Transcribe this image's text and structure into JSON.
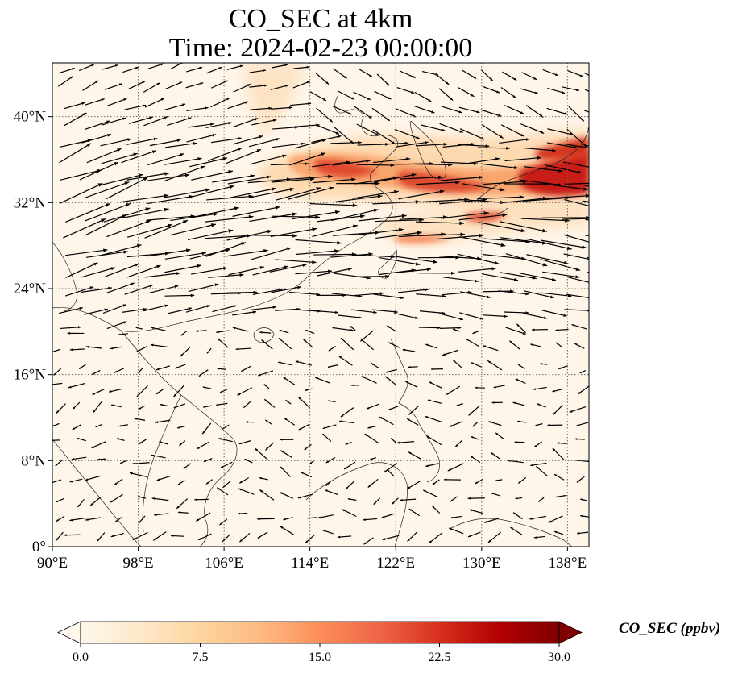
{
  "figure": {
    "title": "CO_SEC at 4km",
    "subtitle": "Time: 2024-02-23 00:00:00"
  },
  "map": {
    "lon_range": [
      90,
      140
    ],
    "lat_range": [
      0,
      45
    ],
    "lon_ticks": [
      90,
      98,
      106,
      114,
      122,
      130,
      138
    ],
    "lon_tick_labels": [
      "90°E",
      "98°E",
      "106°E",
      "114°E",
      "122°E",
      "130°E",
      "138°E"
    ],
    "lat_ticks": [
      0,
      8,
      16,
      24,
      32,
      40
    ],
    "lat_tick_labels": [
      "0°",
      "8°N",
      "16°N",
      "24°N",
      "32°N",
      "40°N"
    ],
    "gridlines": "dotted",
    "wind_vectors": "black arrows"
  },
  "colorbar": {
    "label": "CO_SEC (ppbv)",
    "min": 0.0,
    "max": 30.0,
    "ticks": [
      0.0,
      7.5,
      15.0,
      22.5,
      30.0
    ],
    "tick_labels": [
      "0.0",
      "7.5",
      "15.0",
      "22.5",
      "30.0"
    ],
    "colormap": "OrRd",
    "extend": "both",
    "colors": [
      "#fff7ec",
      "#fee8c8",
      "#fdd49e",
      "#fdbb84",
      "#fc8d59",
      "#ef6548",
      "#d7301f",
      "#b30000",
      "#7f0000"
    ]
  }
}
